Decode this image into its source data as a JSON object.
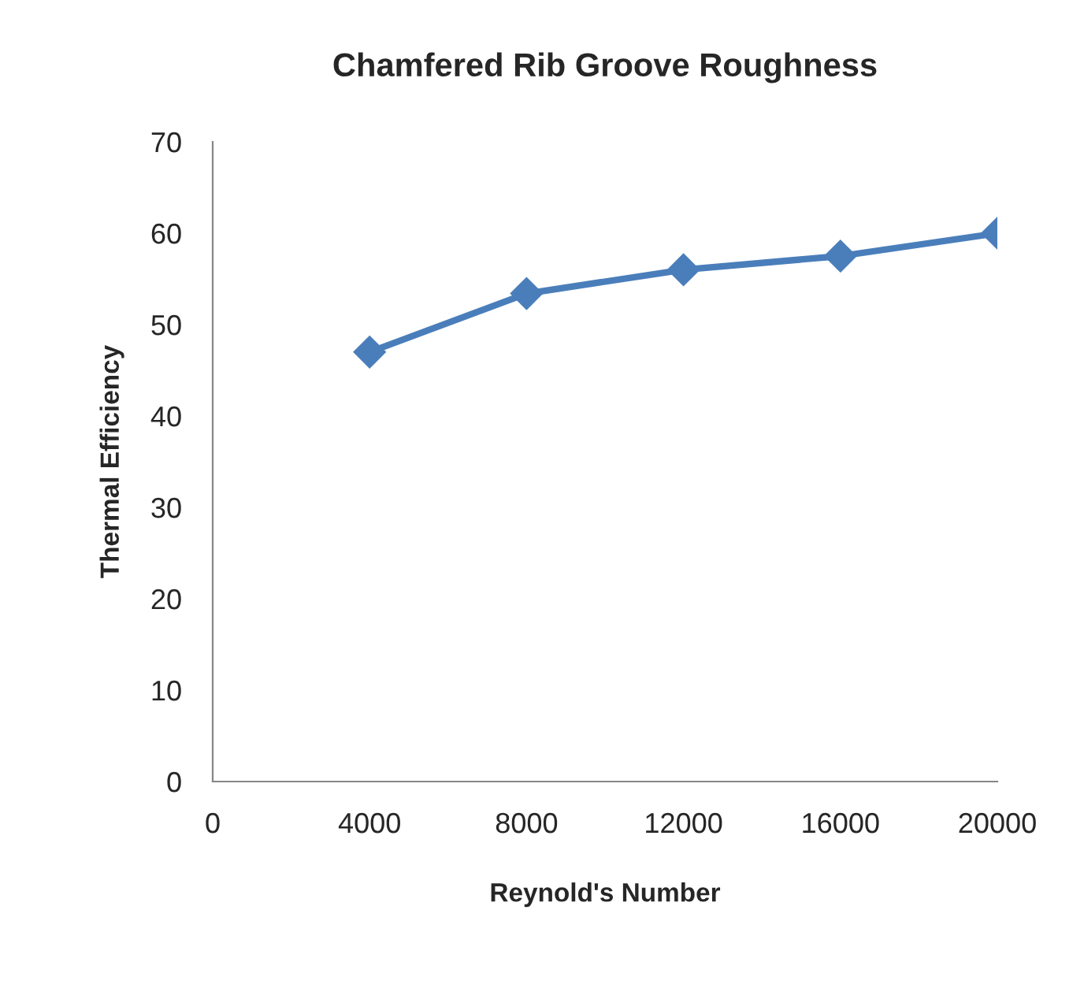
{
  "chart_data": {
    "type": "line",
    "title": "Chamfered Rib Groove Roughness",
    "xlabel": "Reynold's Number",
    "ylabel": "Thermal Efficiency",
    "x": [
      4000,
      8000,
      12000,
      16000,
      20000
    ],
    "series": [
      {
        "color": "#4a7ebb",
        "values": [
          47,
          53.4,
          56,
          57.5,
          60
        ]
      }
    ],
    "xlim": [
      0,
      20000
    ],
    "xticks": [
      0,
      4000,
      8000,
      12000,
      16000,
      20000
    ],
    "ylim": [
      0,
      70
    ],
    "yticks": [
      0,
      10,
      20,
      30,
      40,
      50,
      60,
      70
    ],
    "marker": "diamond",
    "line_style": "solid",
    "grid": false,
    "legend": false
  }
}
